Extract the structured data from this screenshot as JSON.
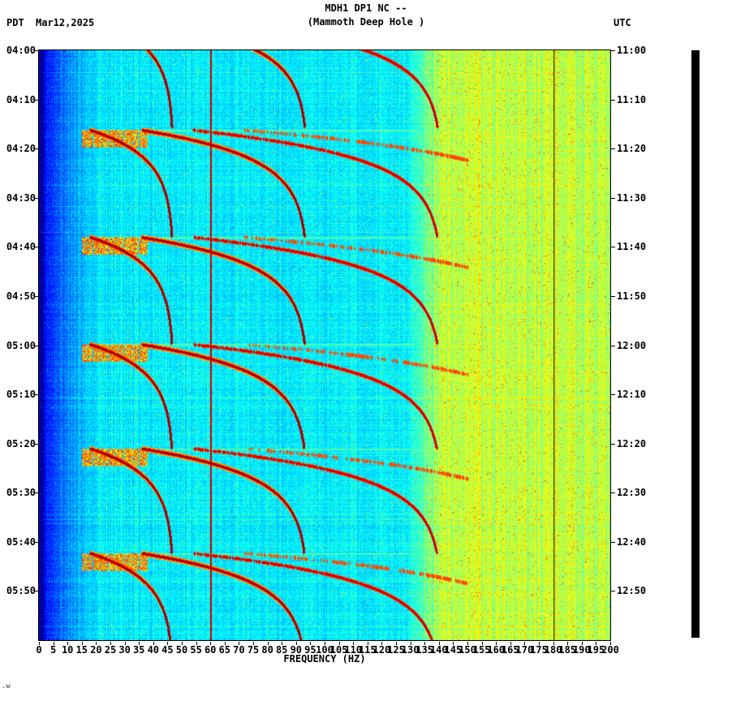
{
  "header": {
    "left_tz": "PDT",
    "date": "Mar12,2025",
    "station_line": "MDH1 DP1 NC --",
    "location_line": "(Mammoth Deep Hole )",
    "right_tz": "UTC"
  },
  "x_axis": {
    "label": "FREQUENCY (HZ)",
    "tick_labels": [
      "0",
      "5",
      "10",
      "15",
      "20",
      "25",
      "30",
      "35",
      "40",
      "45",
      "50",
      "55",
      "60",
      "65",
      "70",
      "75",
      "80",
      "85",
      "90",
      "95",
      "100",
      "105",
      "110",
      "115",
      "120",
      "125",
      "130",
      "135",
      "140",
      "145",
      "150",
      "155",
      "160",
      "165",
      "170",
      "175",
      "180",
      "185",
      "190",
      "195",
      "200"
    ]
  },
  "y_axis_left": {
    "timezone": "PDT",
    "labels": [
      "04:00",
      "04:10",
      "04:20",
      "04:30",
      "04:40",
      "04:50",
      "05:00",
      "05:10",
      "05:20",
      "05:30",
      "05:40",
      "05:50"
    ]
  },
  "y_axis_right": {
    "timezone": "UTC",
    "labels": [
      "11:00",
      "11:10",
      "11:20",
      "11:30",
      "11:40",
      "11:50",
      "12:00",
      "12:10",
      "12:20",
      "12:30",
      "12:40",
      "12:50"
    ]
  },
  "footer": {
    "mark": ".w"
  },
  "chart_data": {
    "type": "heatmap",
    "subtype": "seismic-spectrogram",
    "title": "MDH1 DP1 NC -- (Mammoth Deep Hole )",
    "station_code": "MDH1 DP1 NC --",
    "station_name": "Mammoth Deep Hole",
    "date": "Mar12,2025",
    "xlabel": "FREQUENCY (HZ)",
    "x_range_hz": [
      0,
      200
    ],
    "x_tick_step_hz": 5,
    "time_axis": {
      "left_tz": "PDT",
      "right_tz": "UTC",
      "top_left": "04:00",
      "bottom_left": "06:00",
      "top_right": "11:00",
      "bottom_right": "13:00",
      "tick_step_min": 10,
      "total_min": 120
    },
    "colormap": "jet",
    "background_bands": [
      {
        "band_hz": [
          0,
          2
        ],
        "appearance": "dark navy blue",
        "level": 0.03
      },
      {
        "band_hz": [
          2,
          20
        ],
        "appearance": "blue",
        "level": 0.22
      },
      {
        "band_hz": [
          20,
          130
        ],
        "appearance": "cyan",
        "level": 0.36
      },
      {
        "band_hz": [
          130,
          200
        ],
        "appearance": "yellow-green speckle",
        "level": 0.565
      }
    ],
    "persistent_lines": [
      {
        "hz": 60,
        "appearance": "dark red vertical line"
      },
      {
        "hz": 180,
        "appearance": "dark olive vertical line"
      }
    ],
    "tremor_events": [
      {
        "start_min": -6.5,
        "start_clock_pdt": "03:53"
      },
      {
        "start_min": 16.2,
        "start_clock_pdt": "04:16"
      },
      {
        "start_min": 38.0,
        "start_clock_pdt": "04:38"
      },
      {
        "start_min": 59.8,
        "start_clock_pdt": "05:00"
      },
      {
        "start_min": 81.0,
        "start_clock_pdt": "05:21"
      },
      {
        "start_min": 102.3,
        "start_clock_pdt": "05:42"
      }
    ],
    "event_model": {
      "description": "repeating harmonic tremor events; gliding spectral arcs rise from ~18 Hz toward ~47 Hz plateau with integer harmonics",
      "harmonics": [
        1,
        2,
        3,
        4
      ],
      "fundamental_start_hz": 18,
      "fundamental_plateau_hz": 47,
      "tau_min": 5.5,
      "duration_min": 22,
      "onset_blob_hz": [
        15,
        38
      ],
      "onset_line_hz": [
        18,
        132
      ]
    }
  }
}
